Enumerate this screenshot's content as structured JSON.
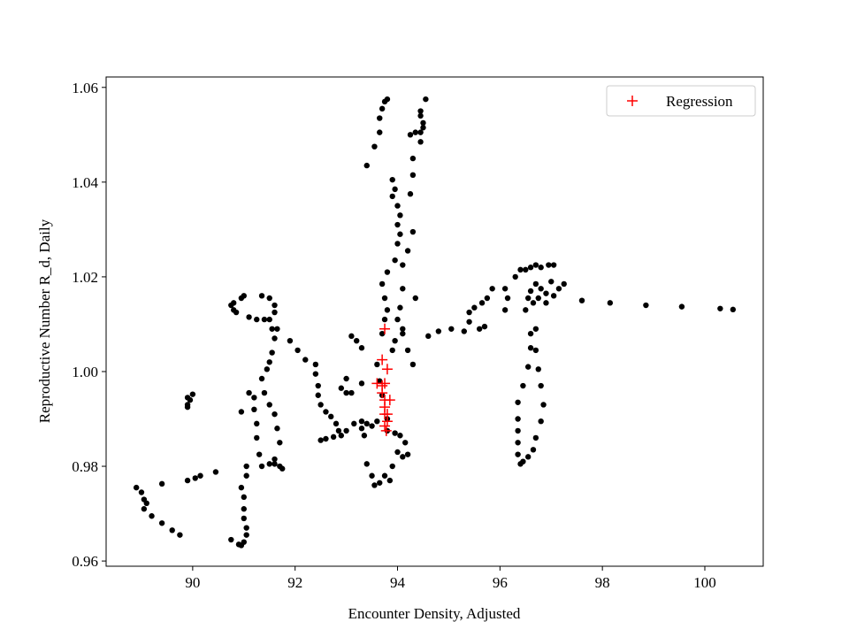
{
  "chart_data": {
    "type": "scatter",
    "x_label": "Encounter Density, Adjusted",
    "y_label": "Reproductive Number R_d, Daily",
    "xlim": [
      88.31,
      101.14
    ],
    "ylim": [
      0.9589,
      1.0622
    ],
    "xticks": [
      90,
      92,
      94,
      96,
      98,
      100
    ],
    "yticks": [
      0.96,
      0.98,
      {
        "value": 1,
        "label": "1.00"
      },
      1.02,
      1.04,
      1.06
    ],
    "legend": "upper right",
    "series": [
      {
        "color": "#000000",
        "marker": "dot",
        "x": [
          88.9,
          89.0,
          89.05,
          89.1,
          89.05,
          89.2,
          89.4,
          89.6,
          89.75,
          89.4,
          89.9,
          90.05,
          90.15,
          90.45,
          89.9,
          89.9,
          89.9,
          90.0,
          89.95,
          90.75,
          90.8,
          90.8,
          90.85,
          90.95,
          91.0,
          90.95,
          90.75,
          90.9,
          90.95,
          91.0,
          91.05,
          91.05,
          91.0,
          91.0,
          91.0,
          90.95,
          91.05,
          91.05,
          91.1,
          91.2,
          91.2,
          91.25,
          91.25,
          91.3,
          91.35,
          91.5,
          91.6,
          91.7,
          91.75,
          91.6,
          91.7,
          91.65,
          91.6,
          91.5,
          91.4,
          91.35,
          91.45,
          91.5,
          91.55,
          91.6,
          91.55,
          91.5,
          91.6,
          91.6,
          91.5,
          91.35,
          91.1,
          91.25,
          91.4,
          91.65,
          91.9,
          92.05,
          92.2,
          92.4,
          92.4,
          92.45,
          92.45,
          92.5,
          92.6,
          92.7,
          92.8,
          92.85,
          92.9,
          92.75,
          92.6,
          92.5,
          93.0,
          93.15,
          93.3,
          93.3,
          93.35,
          93.4,
          93.5,
          93.6,
          93.8,
          93.4,
          93.5,
          93.55,
          93.65,
          93.75,
          93.9,
          93.85,
          94.0,
          94.1,
          94.2,
          94.15,
          94.05,
          93.95,
          93.8,
          92.9,
          93.0,
          93.1,
          93.0,
          93.3,
          93.1,
          93.2,
          93.3,
          93.6,
          93.65,
          93.7,
          93.7,
          93.75,
          93.8,
          93.75,
          93.7,
          93.8,
          93.95,
          94.0,
          94.0,
          94.0,
          93.95,
          93.9,
          93.9,
          94.05,
          94.05,
          94.1,
          94.1,
          94.05,
          94.0,
          94.1,
          94.2,
          94.1,
          93.95,
          93.9,
          93.4,
          93.55,
          93.65,
          93.65,
          93.7,
          93.75,
          93.8,
          94.25,
          94.3,
          94.3,
          94.25,
          94.35,
          94.45,
          94.45,
          94.5,
          94.45,
          94.55,
          94.5,
          94.45,
          94.3,
          94.2,
          94.35,
          94.3,
          94.6,
          94.8,
          95.05,
          95.3,
          95.4,
          95.4,
          95.5,
          95.65,
          95.75,
          95.6,
          95.7,
          95.85,
          96.1,
          96.15,
          96.1,
          96.3,
          96.4,
          96.5,
          96.6,
          96.7,
          96.8,
          96.95,
          97.05,
          97.0,
          96.9,
          96.8,
          96.7,
          96.6,
          96.55,
          96.5,
          96.6,
          96.6,
          96.55,
          96.45,
          96.35,
          96.35,
          96.35,
          96.35,
          96.35,
          96.4,
          96.45,
          96.55,
          96.65,
          96.7,
          96.8,
          96.85,
          96.8,
          96.75,
          96.7,
          96.7,
          96.65,
          96.75,
          96.9,
          97.05,
          97.15,
          97.25,
          97.6,
          98.15,
          98.85,
          99.55,
          100.3,
          100.55
        ],
        "y": [
          0.9755,
          0.9745,
          0.973,
          0.9722,
          0.971,
          0.9695,
          0.968,
          0.9665,
          0.9655,
          0.9763,
          0.977,
          0.9775,
          0.978,
          0.9788,
          0.9945,
          0.993,
          0.9925,
          0.9952,
          0.994,
          1.014,
          1.0145,
          1.013,
          1.0125,
          1.0155,
          1.016,
          0.9915,
          0.9645,
          0.9635,
          0.9633,
          0.964,
          0.9655,
          0.967,
          0.969,
          0.971,
          0.9735,
          0.9755,
          0.978,
          0.98,
          0.9955,
          0.9945,
          0.992,
          0.989,
          0.986,
          0.9825,
          0.98,
          0.9805,
          0.9805,
          0.98,
          0.9795,
          0.9815,
          0.985,
          0.988,
          0.991,
          0.993,
          0.9955,
          0.9985,
          1.0005,
          1.002,
          1.004,
          1.007,
          1.009,
          1.011,
          1.0125,
          1.014,
          1.0155,
          1.016,
          1.0115,
          1.011,
          1.011,
          1.009,
          1.0065,
          1.0045,
          1.0025,
          1.0015,
          0.9995,
          0.997,
          0.995,
          0.993,
          0.9915,
          0.9905,
          0.989,
          0.9875,
          0.9865,
          0.9862,
          0.9858,
          0.9855,
          0.9875,
          0.989,
          0.9895,
          0.988,
          0.9865,
          0.989,
          0.9885,
          0.9895,
          0.99,
          0.9805,
          0.978,
          0.976,
          0.9765,
          0.978,
          0.98,
          0.977,
          0.983,
          0.982,
          0.9825,
          0.985,
          0.9865,
          0.987,
          0.9875,
          0.9965,
          0.9955,
          0.9955,
          0.9985,
          0.9975,
          1.0075,
          1.0065,
          1.005,
          1.0015,
          0.998,
          0.995,
          1.008,
          1.011,
          1.013,
          1.0155,
          1.0185,
          1.021,
          1.0235,
          1.027,
          1.031,
          1.035,
          1.0385,
          1.0405,
          1.037,
          1.033,
          1.029,
          1.0225,
          1.0175,
          1.0135,
          1.011,
          1.008,
          1.0045,
          1.009,
          1.0065,
          1.0045,
          1.0435,
          1.0475,
          1.0505,
          1.0535,
          1.0555,
          1.057,
          1.0575,
          1.0375,
          1.0415,
          1.045,
          1.05,
          1.0505,
          1.0505,
          1.0485,
          1.0525,
          1.055,
          1.0575,
          1.0515,
          1.054,
          1.0295,
          1.0255,
          1.0155,
          1.0015,
          1.0075,
          1.0085,
          1.009,
          1.0085,
          1.0105,
          1.0125,
          1.0135,
          1.0145,
          1.0155,
          1.009,
          1.0095,
          1.0175,
          1.0175,
          1.0155,
          1.013,
          1.02,
          1.0215,
          1.0215,
          1.022,
          1.0225,
          1.022,
          1.0225,
          1.0225,
          1.019,
          1.0165,
          1.0175,
          1.0185,
          1.017,
          1.0155,
          1.013,
          1.008,
          1.005,
          1.001,
          0.997,
          0.9935,
          0.99,
          0.9875,
          0.985,
          0.9825,
          0.9805,
          0.981,
          0.982,
          0.9835,
          0.986,
          0.9895,
          0.993,
          0.997,
          1.0005,
          1.0045,
          1.009,
          1.0145,
          1.0155,
          1.0145,
          1.016,
          1.0175,
          1.0185,
          1.015,
          1.0145,
          1.014,
          1.0137,
          1.0133,
          1.0131
        ]
      },
      {
        "name": "Regression",
        "color": "#ff0000",
        "marker": "plus",
        "x": [
          93.75,
          93.7,
          93.8,
          93.6,
          93.7,
          93.75,
          93.7,
          93.75,
          93.85,
          93.75,
          93.75,
          93.8,
          93.8,
          93.75,
          93.78
        ],
        "y": [
          1.009,
          1.0025,
          1.0005,
          0.9975,
          0.997,
          0.9975,
          0.9955,
          0.994,
          0.994,
          0.9925,
          0.991,
          0.991,
          0.9895,
          0.9885,
          0.9875
        ]
      }
    ]
  }
}
